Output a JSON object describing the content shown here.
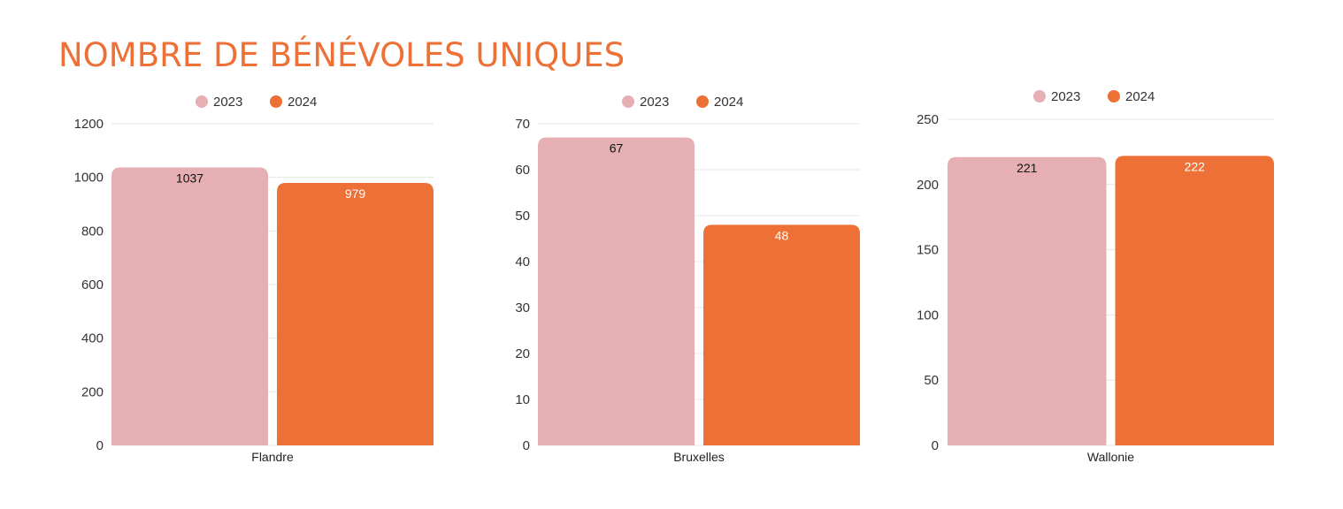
{
  "title": "NOMBRE DE BÉNÉVOLES UNIQUES",
  "colors": {
    "title": "#ed7036",
    "s2023": "#e5afb4",
    "s2024": "#ed7036",
    "grid": "#e6e6e6"
  },
  "chart_data": [
    {
      "type": "bar",
      "categories": [
        "Flandre"
      ],
      "series": [
        {
          "name": "2023",
          "values": [
            1037
          ],
          "color": "#e5afb4",
          "label_color": "#111111"
        },
        {
          "name": "2024",
          "values": [
            979
          ],
          "color": "#ed7036",
          "label_color": "#ffffff"
        }
      ],
      "yticks": [
        0,
        200,
        400,
        600,
        800,
        1000,
        1200
      ],
      "ylim": [
        0,
        1200
      ],
      "legend": "top-center",
      "grid": true
    },
    {
      "type": "bar",
      "categories": [
        "Bruxelles"
      ],
      "series": [
        {
          "name": "2023",
          "values": [
            67
          ],
          "color": "#e5afb4",
          "label_color": "#111111"
        },
        {
          "name": "2024",
          "values": [
            48
          ],
          "color": "#ed7036",
          "label_color": "#ffffff"
        }
      ],
      "yticks": [
        0,
        10,
        20,
        30,
        40,
        50,
        60,
        70
      ],
      "ylim": [
        0,
        70
      ],
      "legend": "top-center",
      "grid": true
    },
    {
      "type": "bar",
      "categories": [
        "Wallonie"
      ],
      "series": [
        {
          "name": "2023",
          "values": [
            221
          ],
          "color": "#e5afb4",
          "label_color": "#111111"
        },
        {
          "name": "2024",
          "values": [
            222
          ],
          "color": "#ed7036",
          "label_color": "#ffffff"
        }
      ],
      "yticks": [
        0,
        50,
        100,
        150,
        200,
        250
      ],
      "ylim": [
        0,
        250
      ],
      "legend": "top-center",
      "grid": true
    }
  ]
}
